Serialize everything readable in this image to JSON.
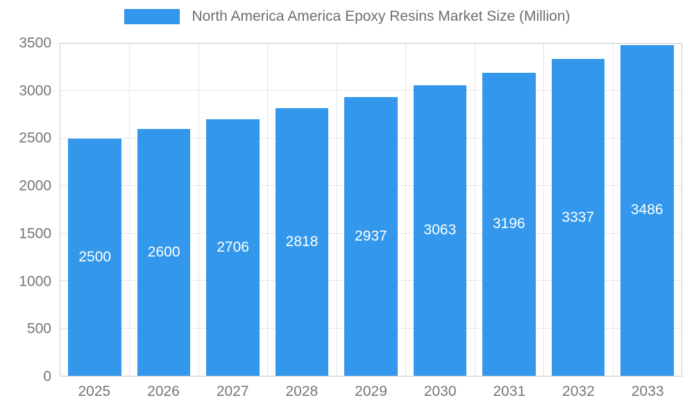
{
  "chart_data": {
    "type": "bar",
    "title": "North America America Epoxy Resins Market Size (Million)",
    "categories": [
      "2025",
      "2026",
      "2027",
      "2028",
      "2029",
      "2030",
      "2031",
      "2032",
      "2033"
    ],
    "values": [
      2500,
      2600,
      2706,
      2818,
      2937,
      3063,
      3196,
      3337,
      3486
    ],
    "xlabel": "",
    "ylabel": "",
    "ylim": [
      0,
      3500
    ],
    "yticks": [
      0,
      500,
      1000,
      1500,
      2000,
      2500,
      3000,
      3500
    ],
    "grid": "on",
    "legend_position": "top-center",
    "bar_color": "#3398ec",
    "label_color": "#ffffff",
    "axis_text_color": "#757575",
    "gridline_color": "#e4e4e4",
    "plot_border_color": "#c9c9c9"
  }
}
